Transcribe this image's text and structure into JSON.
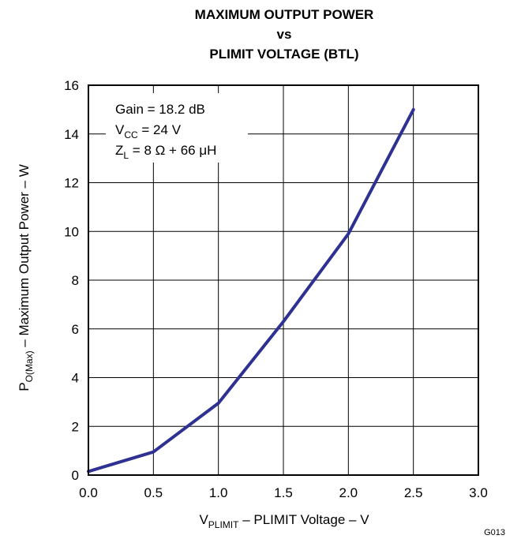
{
  "chart_data": {
    "type": "line",
    "title_lines": [
      "MAXIMUM OUTPUT POWER",
      "vs",
      "PLIMIT VOLTAGE (BTL)"
    ],
    "xlabel": {
      "main": "V",
      "sub": "PLIMIT",
      "rest": " – PLIMIT Voltage – V"
    },
    "ylabel": {
      "main": "P",
      "sub": "O(Max)",
      "rest": " – Maximum Output Power – W"
    },
    "xlim": [
      0,
      3
    ],
    "ylim": [
      0,
      16
    ],
    "x_ticks": [
      "0.0",
      "0.5",
      "1.0",
      "1.5",
      "2.0",
      "2.5",
      "3.0"
    ],
    "y_ticks": [
      "0",
      "2",
      "4",
      "6",
      "8",
      "10",
      "12",
      "14",
      "16"
    ],
    "grid": true,
    "series": [
      {
        "color": "#2e3192",
        "x": [
          0.0,
          0.5,
          1.0,
          1.5,
          2.0,
          2.5
        ],
        "y": [
          0.15,
          0.95,
          2.95,
          6.3,
          9.9,
          15.0
        ]
      }
    ],
    "annotations": {
      "gain": "Gain = 18.2 dB",
      "vcc": {
        "main": "V",
        "sub": "CC",
        "rest": " = 24 V"
      },
      "zl": {
        "main": "Z",
        "sub": "L",
        "rest": " = 8 Ω + 66 μH"
      }
    },
    "figure_id": "G013"
  }
}
